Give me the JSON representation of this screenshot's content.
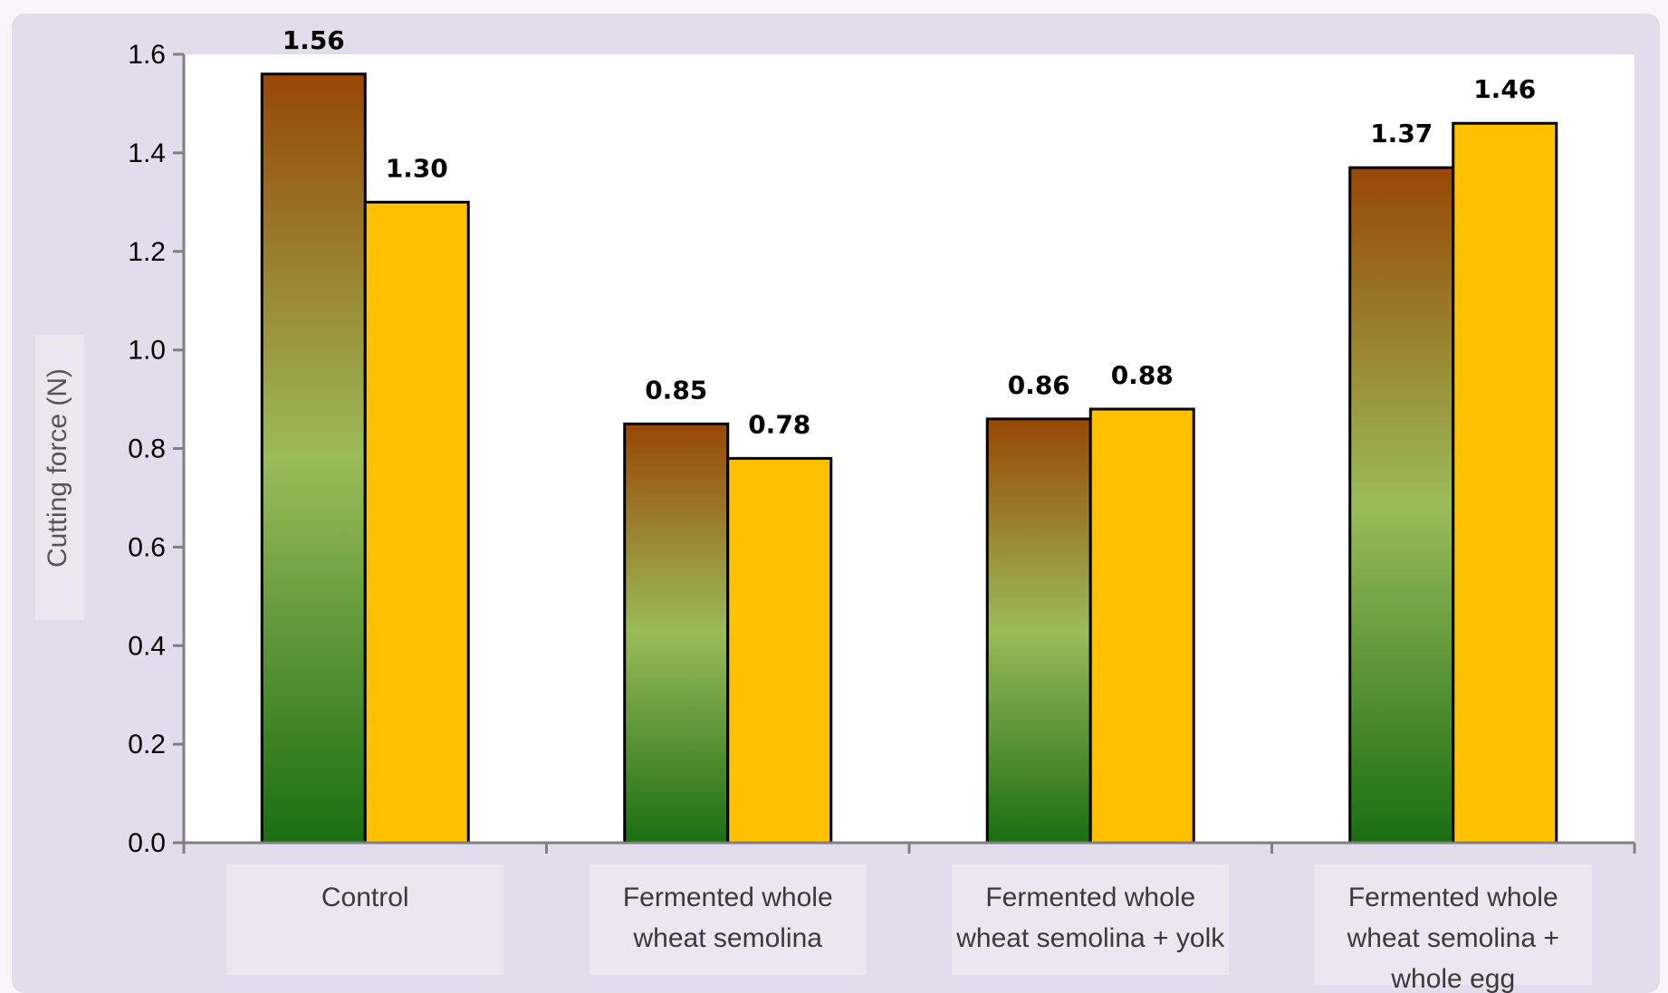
{
  "chart_data": {
    "type": "bar",
    "ylabel": "Cutting force (N)",
    "xlabel": "",
    "ylim": [
      0,
      1.6
    ],
    "yticks": [
      "0.0",
      "0.2",
      "0.4",
      "0.6",
      "0.8",
      "1.0",
      "1.2",
      "1.4",
      "1.6"
    ],
    "categories": [
      [
        "Control"
      ],
      [
        "Fermented whole",
        "wheat semolina"
      ],
      [
        "Fermented whole",
        "wheat semolina + yolk"
      ],
      [
        "Fermented whole",
        "wheat semolina +",
        "whole egg"
      ]
    ],
    "series": [
      {
        "values": [
          1.56,
          0.85,
          0.86,
          1.37
        ],
        "labels": [
          "1.56",
          "0.85",
          "0.86",
          "1.37"
        ],
        "fill": "gradient",
        "colors": [
          "#984806",
          "#9bbb59",
          "#1a6e12"
        ]
      },
      {
        "values": [
          1.3,
          0.78,
          0.88,
          1.46
        ],
        "labels": [
          "1.30",
          "0.78",
          "0.88",
          "1.46"
        ],
        "fill": "solid",
        "color": "#ffc000"
      }
    ],
    "legend": "none",
    "grid": false,
    "colors": {
      "panel": "#e3dcec",
      "plot": "#ffffff",
      "axis": "#808080",
      "category_box": "#ebe6f0"
    }
  }
}
